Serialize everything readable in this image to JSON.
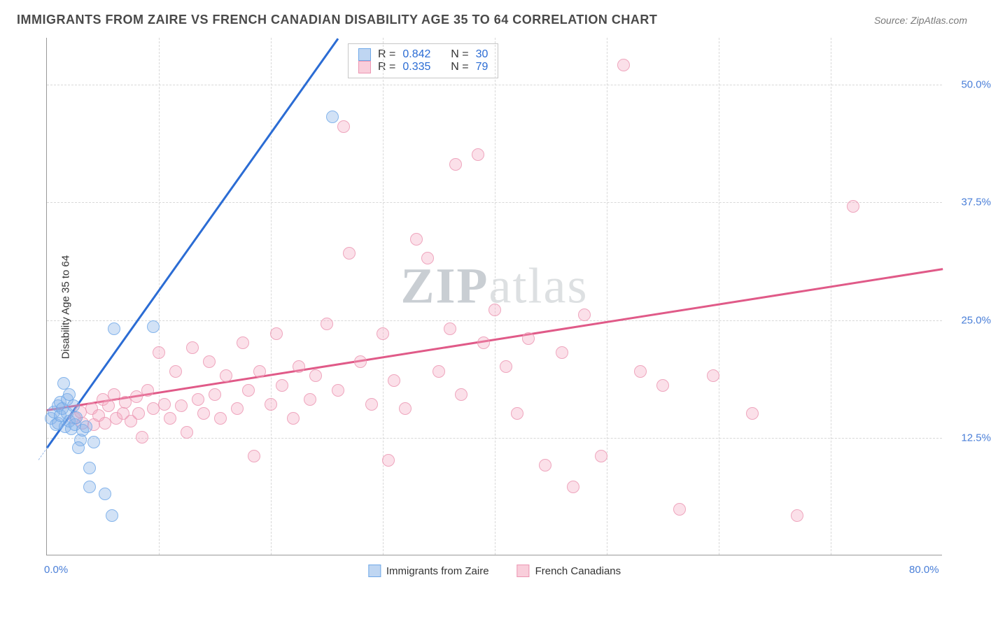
{
  "header": {
    "title": "IMMIGRANTS FROM ZAIRE VS FRENCH CANADIAN DISABILITY AGE 35 TO 64 CORRELATION CHART",
    "source_prefix": "Source: ",
    "source_name": "ZipAtlas.com"
  },
  "chart": {
    "type": "scatter",
    "ylabel": "Disability Age 35 to 64",
    "background_color": "#ffffff",
    "grid_color": "#d8d8d8",
    "axis_color": "#999999",
    "tick_label_color": "#4a7fd8",
    "xlim": [
      0,
      80
    ],
    "ylim": [
      0,
      55
    ],
    "x_ticks": [
      {
        "pos": 0,
        "label": "0.0%"
      },
      {
        "pos": 80,
        "label": "80.0%"
      }
    ],
    "x_gridlines": [
      10,
      20,
      30,
      40,
      50,
      60,
      70
    ],
    "y_ticks": [
      {
        "pos": 12.5,
        "label": "12.5%"
      },
      {
        "pos": 25.0,
        "label": "25.0%"
      },
      {
        "pos": 37.5,
        "label": "37.5%"
      },
      {
        "pos": 50.0,
        "label": "50.0%"
      }
    ],
    "series": [
      {
        "name": "Immigrants from Zaire",
        "key": "zaire",
        "color_fill": "rgba(138,180,232,0.45)",
        "color_border": "#6fa8e8",
        "trend_color": "#2b6cd4",
        "R": "0.842",
        "N": "30",
        "trend": {
          "x1": 0,
          "y1": 11.5,
          "x2": 26,
          "y2": 55
        },
        "points": [
          [
            0.4,
            14.5
          ],
          [
            0.6,
            15.2
          ],
          [
            0.8,
            13.8
          ],
          [
            1.0,
            15.8
          ],
          [
            1.0,
            14.0
          ],
          [
            1.2,
            16.2
          ],
          [
            1.2,
            14.8
          ],
          [
            1.4,
            15.5
          ],
          [
            1.5,
            18.2
          ],
          [
            1.6,
            13.6
          ],
          [
            1.8,
            16.5
          ],
          [
            1.8,
            15.0
          ],
          [
            2.0,
            14.2
          ],
          [
            2.0,
            17.0
          ],
          [
            2.2,
            13.4
          ],
          [
            2.4,
            15.8
          ],
          [
            2.5,
            13.8
          ],
          [
            2.6,
            14.6
          ],
          [
            3.0,
            12.2
          ],
          [
            3.2,
            13.2
          ],
          [
            3.5,
            13.6
          ],
          [
            3.8,
            7.2
          ],
          [
            3.8,
            9.2
          ],
          [
            4.2,
            12.0
          ],
          [
            5.2,
            6.5
          ],
          [
            5.8,
            4.2
          ],
          [
            6.0,
            24.0
          ],
          [
            9.5,
            24.2
          ],
          [
            2.8,
            11.4
          ],
          [
            25.5,
            46.5
          ]
        ]
      },
      {
        "name": "French Canadians",
        "key": "french",
        "color_fill": "rgba(244,166,190,0.40)",
        "color_border": "#ec96b2",
        "trend_color": "#e05a88",
        "R": "0.335",
        "N": "79",
        "trend": {
          "x1": 0,
          "y1": 15.5,
          "x2": 80,
          "y2": 30.5
        },
        "points": [
          [
            2.5,
            14.5
          ],
          [
            3.0,
            15.2
          ],
          [
            3.2,
            14.0
          ],
          [
            4.0,
            15.5
          ],
          [
            4.2,
            13.8
          ],
          [
            4.6,
            14.8
          ],
          [
            5.0,
            16.5
          ],
          [
            5.2,
            14.0
          ],
          [
            5.5,
            15.8
          ],
          [
            6.0,
            17.0
          ],
          [
            6.2,
            14.5
          ],
          [
            6.8,
            15.0
          ],
          [
            7.0,
            16.2
          ],
          [
            7.5,
            14.2
          ],
          [
            8.0,
            16.8
          ],
          [
            8.2,
            15.0
          ],
          [
            8.5,
            12.5
          ],
          [
            9.0,
            17.5
          ],
          [
            9.5,
            15.5
          ],
          [
            10.0,
            21.5
          ],
          [
            10.5,
            16.0
          ],
          [
            11.0,
            14.5
          ],
          [
            11.5,
            19.5
          ],
          [
            12.0,
            15.8
          ],
          [
            12.5,
            13.0
          ],
          [
            13.0,
            22.0
          ],
          [
            13.5,
            16.5
          ],
          [
            14.0,
            15.0
          ],
          [
            14.5,
            20.5
          ],
          [
            15.0,
            17.0
          ],
          [
            15.5,
            14.5
          ],
          [
            16.0,
            19.0
          ],
          [
            17.0,
            15.5
          ],
          [
            17.5,
            22.5
          ],
          [
            18.0,
            17.5
          ],
          [
            18.5,
            10.5
          ],
          [
            19.0,
            19.5
          ],
          [
            20.0,
            16.0
          ],
          [
            20.5,
            23.5
          ],
          [
            21.0,
            18.0
          ],
          [
            22.0,
            14.5
          ],
          [
            22.5,
            20.0
          ],
          [
            23.5,
            16.5
          ],
          [
            24.0,
            19.0
          ],
          [
            25.0,
            24.5
          ],
          [
            26.0,
            17.5
          ],
          [
            26.5,
            45.5
          ],
          [
            27.0,
            32.0
          ],
          [
            28.0,
            20.5
          ],
          [
            29.0,
            16.0
          ],
          [
            30.0,
            23.5
          ],
          [
            30.5,
            10.0
          ],
          [
            31.0,
            18.5
          ],
          [
            32.0,
            15.5
          ],
          [
            33.0,
            33.5
          ],
          [
            34.0,
            31.5
          ],
          [
            35.0,
            19.5
          ],
          [
            36.0,
            24.0
          ],
          [
            36.5,
            41.5
          ],
          [
            37.0,
            17.0
          ],
          [
            38.5,
            42.5
          ],
          [
            39.0,
            22.5
          ],
          [
            40.0,
            26.0
          ],
          [
            41.0,
            20.0
          ],
          [
            42.0,
            15.0
          ],
          [
            43.0,
            23.0
          ],
          [
            44.5,
            9.5
          ],
          [
            46.0,
            21.5
          ],
          [
            48.0,
            25.5
          ],
          [
            49.5,
            10.5
          ],
          [
            51.5,
            52.0
          ],
          [
            53.0,
            19.5
          ],
          [
            55.0,
            18.0
          ],
          [
            56.5,
            4.8
          ],
          [
            59.5,
            19.0
          ],
          [
            63.0,
            15.0
          ],
          [
            67.0,
            4.2
          ],
          [
            72.0,
            37.0
          ],
          [
            47.0,
            7.2
          ]
        ]
      }
    ],
    "stat_box": {
      "r_label": "R =",
      "n_label": "N ="
    },
    "legend_labels": {
      "zaire": "Immigrants from Zaire",
      "french": "French Canadians"
    },
    "watermark": {
      "a": "ZIP",
      "b": "atlas"
    }
  }
}
